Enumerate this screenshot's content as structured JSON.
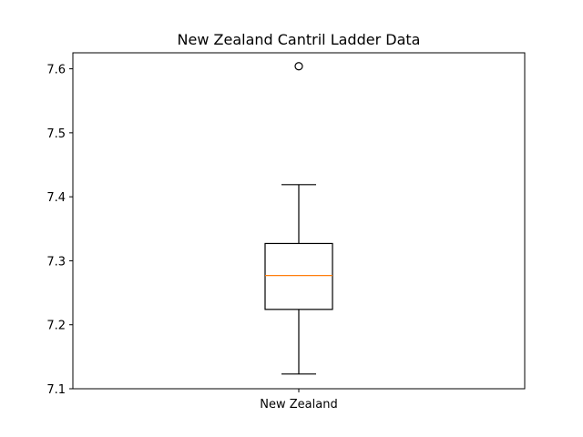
{
  "chart_data": {
    "type": "box",
    "title": "New Zealand Cantril Ladder Data",
    "xlabel": "",
    "ylabel": "",
    "categories": [
      "New Zealand"
    ],
    "series": [
      {
        "whisker_low": 7.123,
        "q1": 7.224,
        "median": 7.277,
        "q3": 7.327,
        "whisker_high": 7.419,
        "outliers": [
          7.604
        ]
      }
    ],
    "ylim": [
      7.1,
      7.625
    ],
    "yticks": [
      7.1,
      7.2,
      7.3,
      7.4,
      7.5,
      7.6
    ],
    "ytick_labels": [
      "7.1",
      "7.2",
      "7.3",
      "7.4",
      "7.5",
      "7.6"
    ],
    "grid": false,
    "legend": "none",
    "colors": {
      "box": "#000000",
      "median": "#ff7f0e",
      "outlier_edge": "#000000"
    }
  }
}
